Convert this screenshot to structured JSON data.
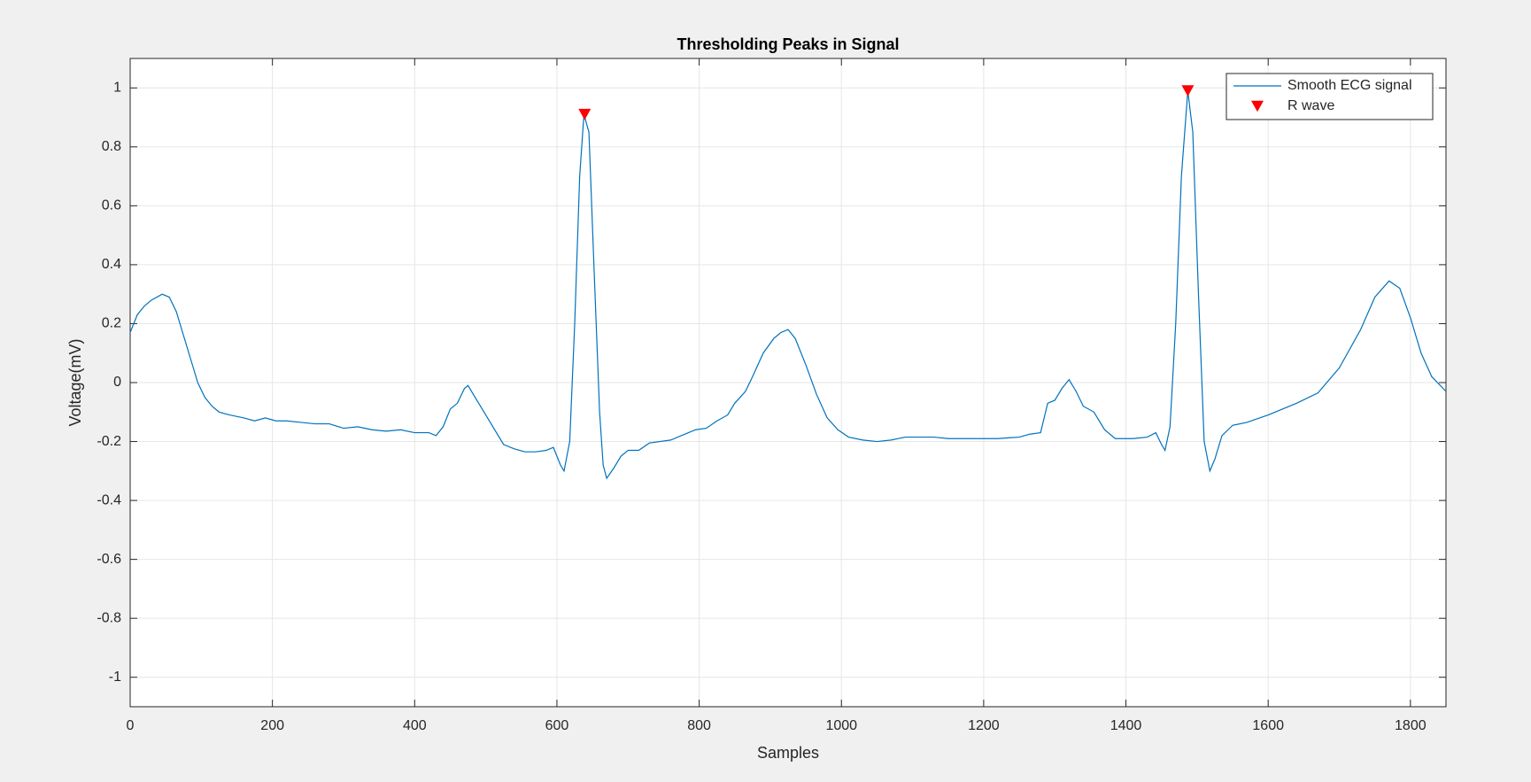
{
  "chart_data": {
    "type": "line",
    "title": "Thresholding Peaks in Signal",
    "x_label": "Samples",
    "y_label": "Voltage(mV)",
    "xlim": [
      0,
      1850
    ],
    "ylim": [
      -1.1,
      1.1
    ],
    "xticks": [
      0,
      200,
      400,
      600,
      800,
      1000,
      1200,
      1400,
      1600,
      1800
    ],
    "yticks": [
      -1,
      -0.8,
      -0.6,
      -0.4,
      -0.2,
      0,
      0.2,
      0.4,
      0.6,
      0.8,
      1
    ],
    "grid": true,
    "legend": "northeast",
    "series": [
      {
        "name": "Smooth ECG signal",
        "color": "#0072bd",
        "marker": "none",
        "x": [
          0,
          10,
          20,
          30,
          45,
          55,
          65,
          75,
          85,
          95,
          105,
          115,
          125,
          140,
          160,
          175,
          190,
          205,
          220,
          240,
          260,
          280,
          300,
          320,
          340,
          360,
          380,
          400,
          420,
          430,
          440,
          450,
          460,
          470,
          475,
          485,
          495,
          510,
          525,
          540,
          555,
          570,
          585,
          595,
          605,
          610,
          618,
          625,
          632,
          638,
          645,
          652,
          660,
          665,
          670,
          680,
          690,
          700,
          715,
          730,
          760,
          780,
          795,
          810,
          825,
          840,
          850,
          865,
          875,
          890,
          905,
          915,
          925,
          935,
          950,
          965,
          980,
          995,
          1010,
          1030,
          1050,
          1070,
          1090,
          1110,
          1130,
          1150,
          1170,
          1190,
          1220,
          1250,
          1265,
          1280,
          1290,
          1300,
          1310,
          1320,
          1330,
          1340,
          1355,
          1370,
          1385,
          1410,
          1430,
          1442,
          1450,
          1455,
          1462,
          1470,
          1478,
          1487,
          1494,
          1502,
          1510,
          1518,
          1525,
          1535,
          1550,
          1570,
          1600,
          1640,
          1670,
          1700,
          1730,
          1750,
          1770,
          1785,
          1800,
          1815,
          1830,
          1850
        ],
        "values": [
          0.17,
          0.23,
          0.26,
          0.28,
          0.3,
          0.29,
          0.24,
          0.16,
          0.08,
          0.0,
          -0.05,
          -0.08,
          -0.1,
          -0.11,
          -0.12,
          -0.13,
          -0.12,
          -0.13,
          -0.13,
          -0.135,
          -0.14,
          -0.14,
          -0.155,
          -0.15,
          -0.16,
          -0.165,
          -0.16,
          -0.17,
          -0.17,
          -0.18,
          -0.15,
          -0.09,
          -0.07,
          -0.02,
          -0.01,
          -0.05,
          -0.09,
          -0.15,
          -0.21,
          -0.225,
          -0.235,
          -0.235,
          -0.23,
          -0.22,
          -0.28,
          -0.3,
          -0.2,
          0.2,
          0.7,
          0.91,
          0.85,
          0.4,
          -0.1,
          -0.28,
          -0.325,
          -0.29,
          -0.25,
          -0.23,
          -0.23,
          -0.205,
          -0.195,
          -0.175,
          -0.16,
          -0.155,
          -0.13,
          -0.11,
          -0.07,
          -0.03,
          0.02,
          0.1,
          0.15,
          0.17,
          0.18,
          0.15,
          0.06,
          -0.04,
          -0.12,
          -0.16,
          -0.185,
          -0.195,
          -0.2,
          -0.195,
          -0.185,
          -0.185,
          -0.185,
          -0.19,
          -0.19,
          -0.19,
          -0.19,
          -0.185,
          -0.175,
          -0.17,
          -0.07,
          -0.06,
          -0.02,
          0.01,
          -0.03,
          -0.08,
          -0.1,
          -0.16,
          -0.19,
          -0.19,
          -0.185,
          -0.17,
          -0.21,
          -0.23,
          -0.15,
          0.2,
          0.7,
          0.99,
          0.85,
          0.3,
          -0.2,
          -0.3,
          -0.26,
          -0.18,
          -0.145,
          -0.135,
          -0.11,
          -0.07,
          -0.035,
          0.05,
          0.18,
          0.29,
          0.345,
          0.32,
          0.22,
          0.1,
          0.02,
          -0.03
        ]
      },
      {
        "name": "R wave",
        "color": "#ff0000",
        "marker": "triangle-down",
        "x": [
          639,
          1487
        ],
        "values": [
          0.91,
          0.99
        ]
      }
    ]
  }
}
